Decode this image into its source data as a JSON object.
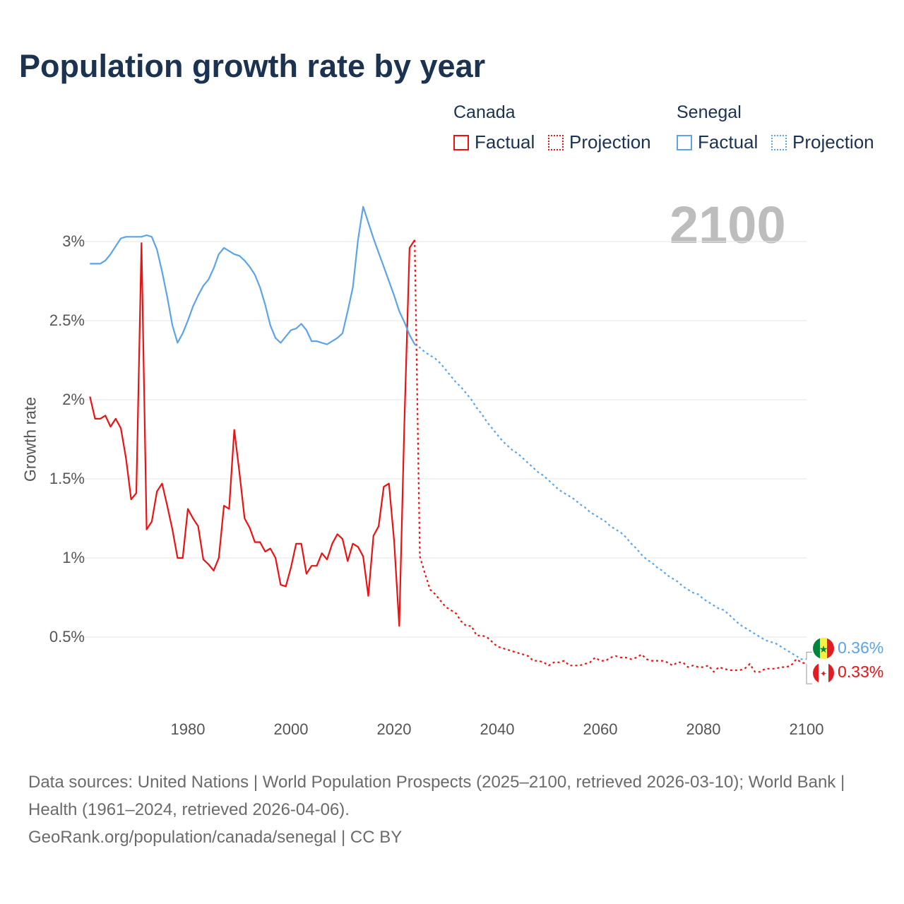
{
  "title": "Population growth rate by year",
  "legend": {
    "groups": [
      {
        "name": "Canada",
        "factual": "Factual",
        "projection": "Projection",
        "color": "#ee1111"
      },
      {
        "name": "Senegal",
        "factual": "Factual",
        "projection": "Projection",
        "color": "#5ba4e8"
      }
    ]
  },
  "current_year": "2100",
  "end_labels": {
    "senegal": "0.36%",
    "canada": "0.33%"
  },
  "footer": {
    "sources": "Data sources: United Nations | World Population Prospects (2025–2100, retrieved 2026-03-10); World Bank | Health (1961–2024, retrieved 2026-04-06).",
    "credit": "GeoRank.org/population/canada/senegal | CC BY"
  },
  "chart_data": {
    "type": "line",
    "title": "Population growth rate by year",
    "xlabel": "",
    "ylabel": "Growth rate",
    "xlim": [
      1961,
      2100
    ],
    "ylim": [
      0.0,
      3.3
    ],
    "x_ticks": [
      "1980",
      "2000",
      "2020",
      "2040",
      "2060",
      "2080",
      "2100"
    ],
    "y_ticks": [
      "0.5%",
      "1%",
      "1.5%",
      "2%",
      "2.5%",
      "3%"
    ],
    "y_tick_values": [
      0.5,
      1,
      1.5,
      2,
      2.5,
      3
    ],
    "grid": true,
    "legend_position": "top-right",
    "series": [
      {
        "name": "Canada Factual",
        "style": "solid",
        "color": "#ee1111",
        "x_start": 1961,
        "values": [
          2.02,
          1.88,
          1.88,
          1.9,
          1.83,
          1.88,
          1.82,
          1.63,
          1.37,
          1.41,
          2.99,
          1.18,
          1.23,
          1.42,
          1.47,
          1.33,
          1.18,
          1.0,
          1.0,
          1.31,
          1.25,
          1.2,
          0.99,
          0.96,
          0.92,
          1.0,
          1.33,
          1.31,
          1.81,
          1.54,
          1.25,
          1.19,
          1.1,
          1.1,
          1.04,
          1.06,
          1.0,
          0.83,
          0.82,
          0.94,
          1.09,
          1.09,
          0.9,
          0.95,
          0.95,
          1.03,
          0.99,
          1.09,
          1.15,
          1.12,
          0.98,
          1.09,
          1.07,
          1.01,
          0.76,
          1.14,
          1.2,
          1.45,
          1.47,
          1.11,
          0.57,
          1.86,
          2.96,
          3.01
        ]
      },
      {
        "name": "Canada Projection",
        "style": "dotted",
        "color": "#ee1111",
        "x_start": 2024,
        "values": [
          3.01,
          1.01,
          0.9,
          0.8,
          0.77,
          0.73,
          0.69,
          0.67,
          0.65,
          0.6,
          0.57,
          0.57,
          0.51,
          0.51,
          0.5,
          0.47,
          0.44,
          0.43,
          0.42,
          0.41,
          0.4,
          0.39,
          0.38,
          0.35,
          0.35,
          0.34,
          0.32,
          0.34,
          0.34,
          0.35,
          0.32,
          0.32,
          0.32,
          0.33,
          0.34,
          0.37,
          0.35,
          0.35,
          0.37,
          0.38,
          0.37,
          0.37,
          0.36,
          0.37,
          0.39,
          0.36,
          0.35,
          0.35,
          0.35,
          0.34,
          0.32,
          0.34,
          0.34,
          0.31,
          0.32,
          0.31,
          0.31,
          0.32,
          0.28,
          0.31,
          0.3,
          0.29,
          0.29,
          0.29,
          0.3,
          0.33,
          0.28,
          0.28,
          0.3,
          0.3,
          0.3,
          0.31,
          0.31,
          0.32,
          0.36,
          0.34,
          0.33
        ]
      },
      {
        "name": "Senegal Factual",
        "style": "solid",
        "color": "#5ba4e8",
        "x_start": 1961,
        "values": [
          2.86,
          2.86,
          2.86,
          2.88,
          2.92,
          2.97,
          3.02,
          3.03,
          3.03,
          3.03,
          3.03,
          3.04,
          3.03,
          2.95,
          2.81,
          2.65,
          2.47,
          2.36,
          2.42,
          2.5,
          2.59,
          2.66,
          2.72,
          2.76,
          2.83,
          2.92,
          2.96,
          2.94,
          2.92,
          2.91,
          2.88,
          2.84,
          2.79,
          2.71,
          2.6,
          2.47,
          2.39,
          2.36,
          2.4,
          2.44,
          2.45,
          2.48,
          2.44,
          2.37,
          2.37,
          2.36,
          2.35,
          2.37,
          2.39,
          2.42,
          2.56,
          2.71,
          3.01,
          3.22,
          3.12,
          3.02,
          2.93,
          2.84,
          2.75,
          2.66,
          2.56,
          2.49,
          2.41,
          2.35
        ]
      },
      {
        "name": "Senegal Projection",
        "style": "dotted",
        "color": "#5ba4e8",
        "x_start": 2024,
        "x_step": 1,
        "values": [
          2.35,
          2.33,
          2.3,
          2.28,
          2.26,
          2.23,
          2.19,
          2.15,
          2.11,
          2.08,
          2.04,
          2.0,
          1.95,
          1.91,
          1.86,
          1.82,
          1.78,
          1.74,
          1.71,
          1.68,
          1.66,
          1.63,
          1.6,
          1.57,
          1.54,
          1.52,
          1.49,
          1.46,
          1.43,
          1.41,
          1.39,
          1.37,
          1.34,
          1.32,
          1.29,
          1.27,
          1.25,
          1.23,
          1.2,
          1.18,
          1.16,
          1.13,
          1.09,
          1.06,
          1.02,
          0.99,
          0.97,
          0.94,
          0.92,
          0.89,
          0.87,
          0.85,
          0.82,
          0.8,
          0.78,
          0.77,
          0.74,
          0.72,
          0.7,
          0.68,
          0.67,
          0.64,
          0.61,
          0.58,
          0.56,
          0.54,
          0.52,
          0.5,
          0.48,
          0.47,
          0.46,
          0.44,
          0.42,
          0.4,
          0.38,
          0.36,
          0.36
        ]
      }
    ]
  }
}
